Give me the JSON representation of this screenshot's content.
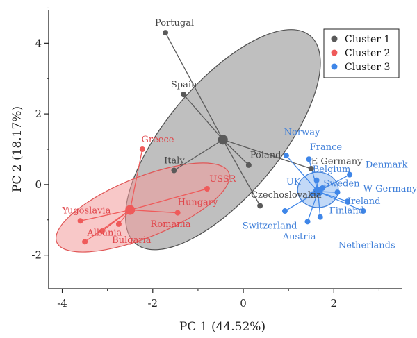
{
  "chart_data": {
    "type": "scatter",
    "xlabel": "PC 1 (44.52%)",
    "ylabel": "PC 2 (18.17%)",
    "xlim": [
      -4.3,
      3.5
    ],
    "ylim": [
      -2.95,
      4.95
    ],
    "xticks": [
      -4,
      -2,
      0,
      2
    ],
    "yticks": [
      -2,
      0,
      2,
      4
    ],
    "legend_position": "top-right",
    "series": [
      {
        "name": "Cluster 1",
        "color": "#5a5a5a",
        "label_color": "#444444",
        "centroid": [
          -0.45,
          1.27
        ],
        "ellipse": {
          "cx": -0.45,
          "cy": 1.27,
          "rx": 3.0,
          "ry": 1.6,
          "angle_deg": 50
        },
        "ellipse_fill": "#8a8a8a",
        "ellipse_stroke": "#505050",
        "points": [
          {
            "label": "Portugal",
            "x": -1.72,
            "y": 4.3,
            "lx": -1.95,
            "ly": 4.5
          },
          {
            "label": "Spain",
            "x": -1.32,
            "y": 2.55,
            "lx": -1.6,
            "ly": 2.75
          },
          {
            "label": "Italy",
            "x": -1.53,
            "y": 0.4,
            "lx": -1.75,
            "ly": 0.6
          },
          {
            "label": "Poland",
            "x": 0.12,
            "y": 0.55,
            "lx": 0.15,
            "ly": 0.75
          },
          {
            "label": "E Germany",
            "x": 1.5,
            "y": 0.45,
            "lx": 1.5,
            "ly": 0.58
          },
          {
            "label": "Czechoslovakia",
            "x": 0.37,
            "y": -0.6,
            "lx": 0.17,
            "ly": -0.38
          }
        ]
      },
      {
        "name": "Cluster 2",
        "color": "#ef5a5a",
        "label_color": "#e0454a",
        "centroid": [
          -2.5,
          -0.72
        ],
        "ellipse": {
          "cx": -2.22,
          "cy": -0.65,
          "rx": 2.05,
          "ry": 0.85,
          "angle_deg": 22
        },
        "ellipse_fill": "#f39a9a",
        "ellipse_stroke": "#e05555",
        "points": [
          {
            "label": "Greece",
            "x": -2.23,
            "y": 1.0,
            "lx": -2.25,
            "ly": 1.2
          },
          {
            "label": "USSR",
            "x": -0.8,
            "y": -0.12,
            "lx": -0.75,
            "ly": 0.08
          },
          {
            "label": "Hungary",
            "x": -1.45,
            "y": -0.8,
            "lx": -1.45,
            "ly": -0.58
          },
          {
            "label": "Yugoslavia",
            "x": -3.6,
            "y": -1.03,
            "lx": -4.0,
            "ly": -0.82
          },
          {
            "label": "Romania",
            "x": -2.75,
            "y": -1.12,
            "lx": -2.05,
            "ly": -1.2
          },
          {
            "label": "Albania",
            "x": -3.12,
            "y": -1.32,
            "lx": -3.45,
            "ly": -1.45
          },
          {
            "label": "Bulgaria",
            "x": -3.5,
            "y": -1.62,
            "lx": -2.9,
            "ly": -1.65
          }
        ]
      },
      {
        "name": "Cluster 3",
        "color": "#3f86e8",
        "label_color": "#3f7fd9",
        "centroid": [
          1.65,
          -0.2
        ],
        "ellipse": {
          "cx": 1.65,
          "cy": -0.15,
          "rx": 0.45,
          "ry": 0.5,
          "angle_deg": 0
        },
        "ellipse_fill": "#8fbaf0",
        "ellipse_stroke": "#3f7fd9",
        "points": [
          {
            "label": "Norway",
            "x": 0.95,
            "y": 0.82,
            "lx": 0.9,
            "ly": 1.4
          },
          {
            "label": "France",
            "x": 1.45,
            "y": 0.72,
            "lx": 1.47,
            "ly": 0.98
          },
          {
            "label": "Belgium",
            "x": 1.62,
            "y": 0.12,
            "lx": 1.53,
            "ly": 0.35
          },
          {
            "label": "UK",
            "x": 1.53,
            "y": -0.27,
            "lx": 0.95,
            "ly": 0.0
          },
          {
            "label": "Sweden",
            "x": 1.75,
            "y": -0.1,
            "lx": 1.77,
            "ly": -0.05
          },
          {
            "label": "Denmark",
            "x": 2.35,
            "y": 0.28,
            "lx": 2.7,
            "ly": 0.48
          },
          {
            "label": "W Germany",
            "x": 2.08,
            "y": -0.22,
            "lx": 2.65,
            "ly": -0.2
          },
          {
            "label": "Ireland",
            "x": 2.3,
            "y": -0.48,
            "lx": 2.3,
            "ly": -0.55
          },
          {
            "label": "Finland",
            "x": 2.65,
            "y": -0.75,
            "lx": 1.9,
            "ly": -0.82
          },
          {
            "label": "Switzerland",
            "x": 0.92,
            "y": -0.75,
            "lx": -0.02,
            "ly": -1.25
          },
          {
            "label": "Austria",
            "x": 1.42,
            "y": -1.05,
            "lx": 0.87,
            "ly": -1.55
          },
          {
            "label": "Netherlands",
            "x": 1.7,
            "y": -0.92,
            "lx": 2.1,
            "ly": -1.8
          }
        ]
      }
    ]
  }
}
